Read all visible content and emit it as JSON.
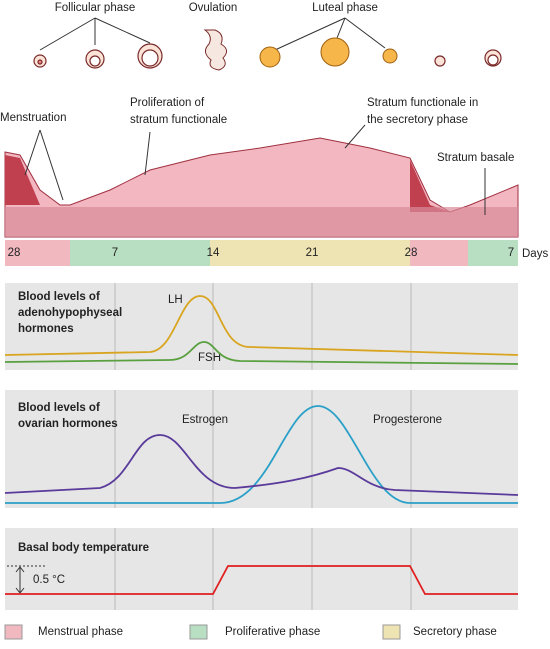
{
  "ovary": {
    "follicular": "Follicular phase",
    "ovulation": "Ovulation",
    "luteal": "Luteal phase"
  },
  "endometrium": {
    "menstruation": "Menstruation",
    "proliferation": [
      "Proliferation of",
      "stratum functionale"
    ],
    "secretory": [
      "Stratum functionale in",
      "the secretory phase"
    ],
    "basale": "Stratum basale"
  },
  "days": {
    "labels": [
      "28",
      "7",
      "14",
      "21",
      "28",
      "7"
    ],
    "unit": "Days"
  },
  "panels": [
    {
      "title": [
        "Blood levels of",
        "adenohypophyseal",
        "hormones"
      ],
      "curves": [
        "LH",
        "FSH"
      ]
    },
    {
      "title": [
        "Blood levels of",
        "ovarian hormones"
      ],
      "curves": [
        "Estrogen",
        "Progesterone"
      ]
    },
    {
      "title": [
        "Basal body temperature"
      ],
      "curves": [
        "0.5 °C"
      ]
    }
  ],
  "legend": [
    "Menstrual phase",
    "Proliferative phase",
    "Secretory phase"
  ]
}
